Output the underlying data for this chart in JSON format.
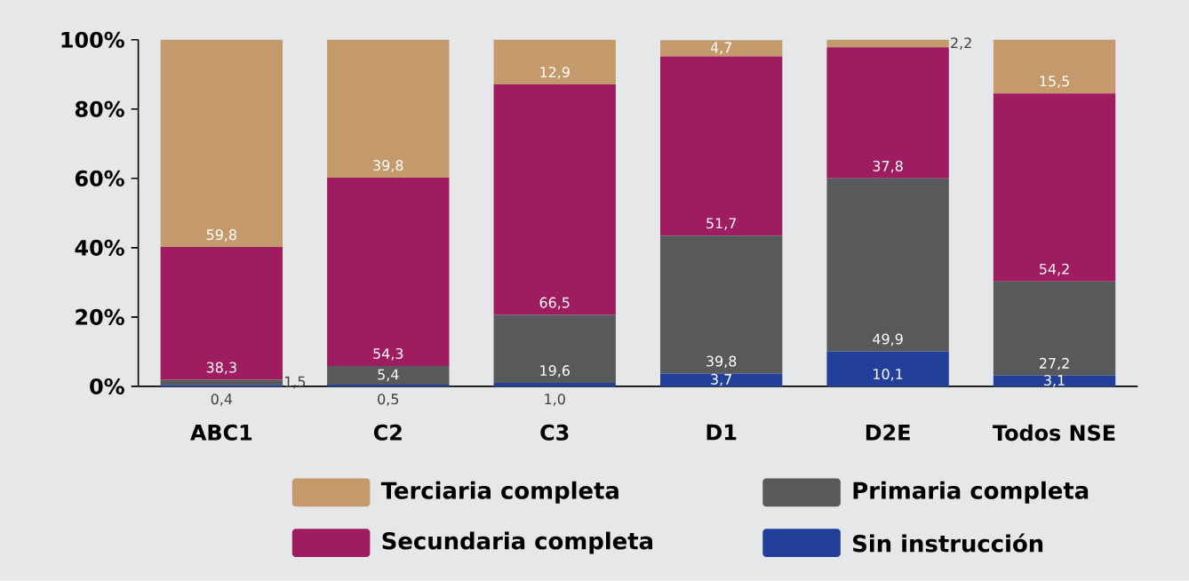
{
  "chart_data": {
    "type": "bar",
    "stacked": true,
    "categories": [
      "ABC1",
      "C2",
      "C3",
      "D1",
      "D2E",
      "Todos NSE"
    ],
    "series": [
      {
        "name": "Sin instrucción",
        "color": "#223f99",
        "values": [
          0.4,
          0.5,
          1.0,
          3.7,
          10.1,
          3.1
        ],
        "value_labels": [
          "0,4",
          "0,5",
          "1,0",
          "3,7",
          "10,1",
          "3,1"
        ]
      },
      {
        "name": "Primaria completa",
        "color": "#58595b",
        "values": [
          1.5,
          5.4,
          19.6,
          39.8,
          49.9,
          27.2
        ],
        "value_labels": [
          "1,5",
          "5,4",
          "19,6",
          "39,8",
          "49,9",
          "27,2"
        ]
      },
      {
        "name": "Secundaria completa",
        "color": "#9e1c5f",
        "values": [
          38.3,
          54.3,
          66.5,
          51.7,
          37.8,
          54.2
        ],
        "value_labels": [
          "38,3",
          "54,3",
          "66,5",
          "51,7",
          "37,8",
          "54,2"
        ]
      },
      {
        "name": "Terciaria completa",
        "color": "#c49a6c",
        "values": [
          59.8,
          39.8,
          12.9,
          4.7,
          2.2,
          15.5
        ],
        "value_labels": [
          "59,8",
          "39,8",
          "12,9",
          "4,7",
          "2,2",
          "15,5"
        ]
      }
    ],
    "ylim": [
      0,
      100
    ],
    "yticks": [
      {
        "value": 0,
        "label": "0%"
      },
      {
        "value": 20,
        "label": "20%"
      },
      {
        "value": 40,
        "label": "40%"
      },
      {
        "value": 60,
        "label": "60%"
      },
      {
        "value": 80,
        "label": "80%"
      },
      {
        "value": 100,
        "label": "100%"
      }
    ],
    "legend": "bottom"
  }
}
